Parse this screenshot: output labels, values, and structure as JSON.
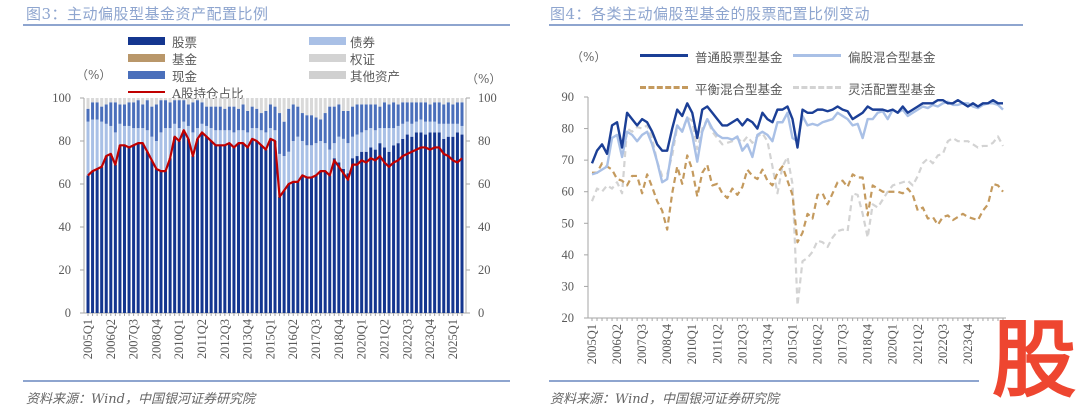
{
  "left": {
    "title": "图3：主动偏股型基金资产配置比例",
    "source": "资料来源：Wind，中国银河证券研究院",
    "unit_left": "（%）",
    "unit_right": "（%）",
    "legend": [
      {
        "label": "股票",
        "color": "#14368f"
      },
      {
        "label": "债券",
        "color": "#a9c0e6"
      },
      {
        "label": "基金",
        "color": "#b9976a"
      },
      {
        "label": "权证",
        "color": "#d3d3d3"
      },
      {
        "label": "现金",
        "color": "#4a6fbb"
      },
      {
        "label": "其他资产",
        "color": "#d0d0d0"
      },
      {
        "label": "A股持仓占比",
        "color": "#c00000"
      }
    ]
  },
  "right": {
    "title": "图4：各类主动偏股型基金的股票配置比例变动",
    "source": "资料来源：Wind，中国银河证券研究院",
    "unit_left": "（%）",
    "legend": [
      {
        "label": "普通股票型基金",
        "color": "#1b3f96",
        "style": "solid"
      },
      {
        "label": "偏股混合型基金",
        "color": "#a9c0e6",
        "style": "solid"
      },
      {
        "label": "平衡混合型基金",
        "color": "#c49a5e",
        "style": "dashed"
      },
      {
        "label": "灵活配置型基金",
        "color": "#d3d3d3",
        "style": "dashed"
      }
    ]
  },
  "watermark": "股",
  "chart_data": [
    {
      "type": "bar",
      "stacked": true,
      "title": "图3：主动偏股型基金资产配置比例",
      "ylim": [
        0,
        100
      ],
      "y2lim": [
        0,
        100
      ],
      "yticks": [
        0,
        20,
        40,
        60,
        80,
        100
      ],
      "grid": false,
      "legend_position": "top",
      "tick_labels": [
        "2005Q1",
        "2006Q2",
        "2007Q3",
        "2008Q4",
        "2010Q1",
        "2011Q2",
        "2012Q3",
        "2013Q4",
        "2015Q1",
        "2016Q2",
        "2017Q3",
        "2018Q4",
        "2020Q1",
        "2021Q2",
        "2022Q3",
        "2023Q4",
        "2025Q1"
      ],
      "series": [
        {
          "name": "股票",
          "color": "#14368f",
          "values": [
            64,
            66,
            67,
            68,
            73,
            74,
            69,
            78,
            78,
            77,
            78,
            79,
            79,
            75,
            71,
            67,
            66,
            66,
            72,
            82,
            80,
            85,
            81,
            73,
            81,
            84,
            82,
            80,
            78,
            78,
            78,
            79,
            77,
            79,
            79,
            77,
            81,
            80,
            78,
            76,
            81,
            80,
            54,
            57,
            60,
            61,
            61,
            64,
            63,
            63,
            64,
            66,
            66,
            64,
            72,
            70,
            67,
            65,
            72,
            73,
            75,
            75,
            77,
            76,
            79,
            77,
            75,
            78,
            79,
            81,
            83,
            82,
            84,
            84,
            83,
            84,
            84,
            84,
            81,
            82,
            82,
            84,
            83
          ]
        },
        {
          "name": "债券",
          "color": "#a9c0e6",
          "values": [
            25,
            24,
            23,
            21,
            15,
            13,
            15,
            10,
            9,
            10,
            8,
            7,
            7,
            10,
            11,
            13,
            18,
            20,
            14,
            6,
            6,
            4,
            6,
            11,
            5,
            4,
            5,
            6,
            7,
            7,
            7,
            6,
            7,
            6,
            6,
            7,
            5,
            6,
            7,
            8,
            5,
            5,
            20,
            16,
            15,
            19,
            21,
            16,
            15,
            15,
            15,
            14,
            13,
            12,
            7,
            12,
            14,
            14,
            10,
            10,
            9,
            10,
            9,
            9,
            7,
            9,
            11,
            8,
            8,
            7,
            6,
            6,
            5,
            6,
            6,
            5,
            5,
            4,
            7,
            6,
            6,
            4,
            4
          ]
        },
        {
          "name": "现金",
          "color": "#4a6fbb",
          "values": [
            6,
            8,
            8,
            7,
            9,
            11,
            14,
            9,
            10,
            11,
            12,
            13,
            11,
            14,
            14,
            17,
            15,
            13,
            12,
            11,
            13,
            10,
            10,
            14,
            13,
            10,
            9,
            10,
            11,
            11,
            10,
            11,
            12,
            10,
            12,
            10,
            10,
            9,
            8,
            10,
            11,
            11,
            19,
            16,
            20,
            17,
            14,
            13,
            14,
            14,
            12,
            10,
            14,
            20,
            17,
            15,
            13,
            15,
            14,
            14,
            13,
            12,
            11,
            12,
            10,
            12,
            11,
            12,
            10,
            10,
            9,
            10,
            9,
            8,
            9,
            8,
            9,
            10,
            9,
            10,
            9,
            10,
            11
          ]
        },
        {
          "name": "其他资产",
          "color": "#d9d9d9",
          "values": [
            5,
            2,
            2,
            4,
            3,
            2,
            2,
            3,
            3,
            2,
            2,
            1,
            3,
            1,
            4,
            3,
            1,
            1,
            2,
            1,
            1,
            1,
            3,
            2,
            1,
            2,
            4,
            4,
            4,
            4,
            5,
            4,
            4,
            5,
            3,
            6,
            4,
            5,
            7,
            6,
            3,
            4,
            7,
            11,
            5,
            3,
            4,
            7,
            8,
            8,
            9,
            10,
            7,
            4,
            4,
            3,
            6,
            6,
            4,
            3,
            3,
            3,
            3,
            3,
            4,
            2,
            3,
            2,
            3,
            2,
            2,
            2,
            2,
            2,
            2,
            3,
            2,
            2,
            3,
            2,
            3,
            2,
            2
          ]
        }
      ],
      "line_series": {
        "name": "A股持仓占比",
        "color": "#c00000",
        "values": [
          64,
          66,
          67,
          68,
          73,
          74,
          69,
          78,
          78,
          77,
          78,
          79,
          79,
          75,
          71,
          67,
          66,
          66,
          72,
          82,
          80,
          85,
          81,
          73,
          81,
          84,
          82,
          80,
          78,
          78,
          78,
          79,
          77,
          79,
          79,
          77,
          81,
          80,
          78,
          76,
          81,
          80,
          54,
          57,
          60,
          61,
          61,
          64,
          63,
          63,
          64,
          66,
          66,
          64,
          71,
          68,
          65,
          62,
          69,
          69,
          71,
          70,
          72,
          71,
          73,
          70,
          68,
          70,
          71,
          73,
          74,
          75,
          76,
          77,
          77,
          76,
          77,
          77,
          74,
          73,
          71,
          70,
          72
        ]
      }
    },
    {
      "type": "line",
      "title": "图4：各类主动偏股型基金的股票配置比例变动",
      "ylim": [
        20,
        90
      ],
      "yticks": [
        20,
        30,
        40,
        50,
        60,
        70,
        80,
        90
      ],
      "grid": false,
      "legend_position": "top",
      "tick_labels": [
        "2005Q1",
        "2006Q2",
        "2007Q3",
        "2008Q4",
        "2010Q1",
        "2011Q2",
        "2012Q3",
        "2013Q4",
        "2015Q1",
        "2016Q2",
        "2017Q3",
        "2018Q4",
        "2020Q1",
        "2021Q2",
        "2022Q3",
        "2023Q4"
      ],
      "series": [
        {
          "name": "普通股票型基金",
          "color": "#1b3f96",
          "dash": false,
          "values": [
            69,
            73,
            75,
            72,
            81,
            82,
            74,
            85,
            83,
            81,
            83,
            82,
            79,
            75,
            73,
            73,
            80,
            86,
            84,
            88,
            85,
            77,
            86,
            87,
            85,
            83,
            81,
            81,
            82,
            83,
            81,
            83,
            82,
            80,
            85,
            83,
            82,
            86,
            86,
            87,
            83,
            74,
            86,
            85,
            85,
            86,
            86,
            85.5,
            86,
            87,
            86,
            85.5,
            83,
            84,
            85,
            87,
            86,
            86,
            86,
            85.5,
            86,
            85,
            87,
            85,
            86,
            87,
            88,
            88,
            88,
            89,
            89,
            88,
            88,
            89,
            88,
            87,
            88,
            87,
            88,
            88,
            89,
            88,
            88
          ]
        },
        {
          "name": "偏股混合型基金",
          "color": "#a9c0e6",
          "dash": false,
          "values": [
            65.5,
            66,
            67,
            68,
            77,
            78,
            71,
            79,
            78,
            76,
            78,
            79,
            75,
            69.5,
            63,
            64,
            74,
            81,
            79,
            83.5,
            78,
            69.5,
            79,
            83,
            80,
            78,
            77,
            77,
            76.5,
            77.5,
            73,
            75,
            71,
            78,
            79,
            78,
            76,
            82,
            82,
            85,
            77,
            76,
            84,
            81,
            81.5,
            81,
            82,
            82.5,
            83,
            85,
            84,
            83,
            81,
            81.5,
            77,
            83,
            83,
            85,
            85.5,
            83,
            86,
            85,
            86,
            84,
            85,
            86,
            87,
            86.5,
            87.5,
            87,
            88,
            88.5,
            87.5,
            87.5,
            88,
            88,
            87,
            86.5,
            87.5,
            88,
            88,
            87.5,
            86
          ]
        },
        {
          "name": "平衡混合型基金",
          "color": "#c49a5e",
          "dash": true,
          "values": [
            66,
            66,
            69,
            68,
            67,
            64,
            63.5,
            62,
            65,
            65,
            59.5,
            65.5,
            61.5,
            57,
            54,
            48,
            59.5,
            68,
            62.5,
            71.5,
            67,
            58.5,
            66,
            68.5,
            62,
            62.5,
            59.5,
            58,
            61,
            59,
            61.5,
            67,
            65,
            64,
            67,
            63.5,
            62,
            66,
            68,
            63.5,
            59,
            44,
            47,
            53,
            51.5,
            59,
            59.5,
            56,
            59.5,
            63,
            63.5,
            61.5,
            65.5,
            64.5,
            64.5,
            52.5,
            62,
            61,
            60,
            60,
            60,
            60,
            59.5,
            61,
            59,
            54,
            55,
            51.5,
            52,
            49.5,
            52,
            52.5,
            51,
            52,
            53,
            52,
            51.5,
            51,
            54,
            56,
            62.5,
            62,
            60
          ]
        },
        {
          "name": "灵活配置型基金",
          "color": "#d3d3d3",
          "dash": true,
          "values": [
            57,
            61,
            60,
            62,
            61,
            63,
            59.5,
            80,
            79,
            80.5,
            80,
            81,
            77,
            69.5,
            65,
            65.5,
            71.5,
            80.5,
            79.5,
            83.5,
            82.5,
            73.5,
            80,
            83,
            79,
            77,
            75,
            75.5,
            76,
            77,
            75.5,
            77.5,
            75.5,
            77.5,
            78.5,
            76,
            68,
            59.5,
            68,
            71,
            62.5,
            24,
            38,
            39,
            41,
            44.5,
            44,
            42.5,
            45.5,
            47.5,
            48,
            47.5,
            59.5,
            59,
            53,
            45.5,
            56,
            55,
            57.5,
            60,
            62,
            62.5,
            63,
            63.5,
            62,
            65,
            69,
            70.5,
            69,
            71.5,
            72,
            76,
            77,
            76,
            76,
            76,
            75,
            74,
            74.5,
            74.5,
            75.5,
            77.5,
            74.5
          ]
        }
      ]
    }
  ]
}
